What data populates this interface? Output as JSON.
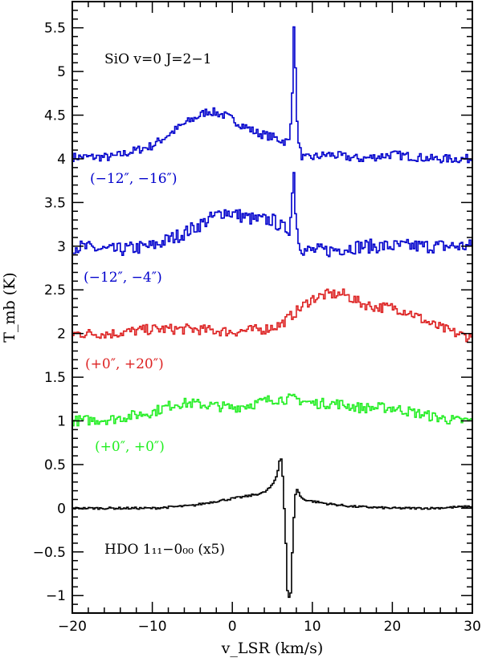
{
  "chart_data": {
    "type": "line",
    "title": "",
    "xlabel": "v_LSR (km/s)",
    "ylabel": "T_mb (K)",
    "xlim": [
      -20,
      30
    ],
    "ylim": [
      -1.2,
      5.8
    ],
    "x_ticks": [
      -20,
      -10,
      0,
      10,
      20,
      30
    ],
    "x_tick_labels": [
      "−20",
      "−10",
      "0",
      "10",
      "20",
      "30"
    ],
    "y_ticks": [
      -1,
      -0.5,
      0,
      0.5,
      1,
      1.5,
      2,
      2.5,
      3,
      3.5,
      4,
      4.5,
      5,
      5.5
    ],
    "y_tick_labels": [
      "−1",
      "−0.5",
      "0",
      "0.5",
      "1",
      "1.5",
      "2",
      "2.5",
      "3",
      "3.5",
      "4",
      "4.5",
      "5",
      "5.5"
    ],
    "grid": false,
    "annotations": [
      {
        "text": "SiO v=0 J=2−1",
        "color": "#000000"
      },
      {
        "text": "HDO 1₁₁−0₀₀ (x5)",
        "color": "#000000"
      }
    ],
    "series": [
      {
        "name": "(−12″, −16″)",
        "color": "#0000cc",
        "offset": 4.0,
        "x": [
          -20,
          -15,
          -10,
          -6,
          -3,
          -1,
          1,
          3,
          5,
          6.5,
          7.2,
          7.5,
          7.7,
          7.9,
          8.2,
          8.6,
          9,
          12,
          16,
          20,
          25,
          30
        ],
        "y": [
          4.02,
          4.02,
          4.15,
          4.4,
          4.55,
          4.5,
          4.4,
          4.3,
          4.25,
          4.2,
          4.2,
          4.8,
          5.55,
          5.0,
          4.2,
          4.05,
          4.0,
          4.05,
          4.0,
          4.05,
          4.0,
          4.0
        ]
      },
      {
        "name": "(−12″, −4″)",
        "color": "#0000cc",
        "offset": 3.0,
        "x": [
          -20,
          -15,
          -10,
          -6,
          -3,
          -1,
          1,
          3,
          5,
          6.5,
          7.2,
          7.5,
          7.7,
          7.9,
          8.2,
          8.6,
          9,
          12,
          16,
          20,
          25,
          30
        ],
        "y": [
          3.0,
          2.95,
          3.0,
          3.15,
          3.3,
          3.4,
          3.35,
          3.3,
          3.3,
          3.2,
          3.2,
          3.6,
          3.9,
          3.4,
          3.1,
          3.0,
          2.95,
          2.95,
          3.0,
          3.0,
          3.0,
          3.0
        ]
      },
      {
        "name": "(+0″, +20″)",
        "color": "#dd2222",
        "offset": 2.0,
        "x": [
          -20,
          -15,
          -10,
          -5,
          0,
          4,
          6,
          8,
          10,
          12,
          14,
          16,
          18,
          20,
          22,
          25,
          28,
          30
        ],
        "y": [
          2.0,
          2.0,
          2.05,
          2.05,
          2.02,
          2.05,
          2.1,
          2.25,
          2.4,
          2.45,
          2.45,
          2.35,
          2.3,
          2.3,
          2.25,
          2.1,
          2.0,
          1.95
        ]
      },
      {
        "name": "(+0″, +0″)",
        "color": "#22ee22",
        "offset": 1.0,
        "x": [
          -20,
          -15,
          -10,
          -7,
          -5,
          0,
          3,
          5,
          8,
          10,
          13,
          16,
          20,
          25,
          28,
          30
        ],
        "y": [
          1.0,
          1.02,
          1.1,
          1.2,
          1.2,
          1.15,
          1.2,
          1.25,
          1.25,
          1.2,
          1.2,
          1.15,
          1.15,
          1.05,
          1.0,
          1.0
        ]
      },
      {
        "name": "HDO 1₁₁−0₀₀ (x5)",
        "color": "#000000",
        "offset": 0.0,
        "x": [
          -20,
          -15,
          -10,
          -5,
          -2,
          0,
          2,
          4,
          5,
          5.6,
          6.0,
          6.2,
          6.5,
          6.7,
          6.9,
          7.1,
          7.3,
          7.5,
          7.7,
          7.9,
          8.1,
          8.3,
          8.6,
          9.0,
          10,
          12,
          15,
          20,
          25,
          30
        ],
        "y": [
          0.0,
          0.0,
          0.0,
          0.03,
          0.08,
          0.11,
          0.14,
          0.18,
          0.26,
          0.38,
          0.6,
          0.55,
          0.0,
          -0.4,
          -0.95,
          -1.02,
          -0.98,
          -0.5,
          -0.1,
          0.15,
          0.22,
          0.18,
          0.12,
          0.1,
          0.08,
          0.05,
          0.02,
          0.0,
          0.0,
          0.02
        ]
      }
    ]
  }
}
